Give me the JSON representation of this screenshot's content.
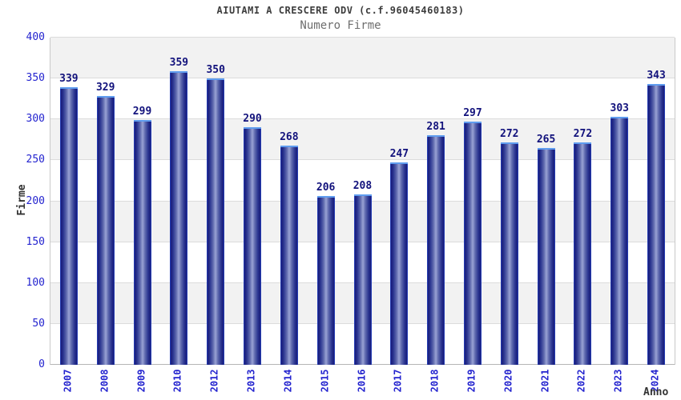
{
  "header": {
    "title": "AIUTAMI A CRESCERE ODV (c.f.96045460183)",
    "subtitle": "Numero Firme"
  },
  "chart_data": {
    "type": "bar",
    "title": "AIUTAMI A CRESCERE ODV (c.f.96045460183)",
    "subtitle": "Numero Firme",
    "xlabel": "Anno",
    "ylabel": "Firme",
    "categories": [
      "2007",
      "2008",
      "2009",
      "2010",
      "2012",
      "2013",
      "2014",
      "2015",
      "2016",
      "2017",
      "2018",
      "2019",
      "2020",
      "2021",
      "2022",
      "2023",
      "2024"
    ],
    "values": [
      339,
      329,
      299,
      359,
      350,
      290,
      268,
      206,
      208,
      247,
      281,
      297,
      272,
      265,
      272,
      303,
      343
    ],
    "ylim": [
      0,
      400
    ],
    "yticks": [
      0,
      50,
      100,
      150,
      200,
      250,
      300,
      350,
      400
    ],
    "grid": true,
    "band_fill": "alternating gray/white horizontal bands",
    "legend": "none",
    "bar_labels_shown": true,
    "x_tick_rotation_deg": 90
  },
  "colors": {
    "tick": "#2424cf",
    "value_label": "#12127c",
    "bar_edge": "#2b4ed4",
    "bar_dark": "#191d7b",
    "bar_mid": "#5f6aae",
    "bar_light": "#99a2d4",
    "bar_cap": "#5f9cef",
    "band": "#f2f2f2",
    "grid": "#dcdcdc"
  }
}
